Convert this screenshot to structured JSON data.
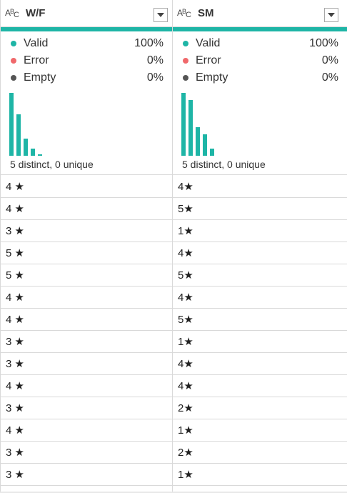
{
  "columns": [
    {
      "type_icon": {
        "a": "A",
        "b": "B",
        "c": "C",
        "name": "text-type-icon"
      },
      "name": "W/F",
      "valid_label": "Valid",
      "valid_pct": "100%",
      "error_label": "Error",
      "error_pct": "0%",
      "empty_label": "Empty",
      "empty_pct": "0%",
      "distribution": [
        88,
        58,
        24,
        10,
        2
      ],
      "summary": "5 distinct, 0 unique",
      "rows": [
        "4 ★",
        "4 ★",
        "3 ★",
        "5 ★",
        "5 ★",
        "4 ★",
        "4 ★",
        "3 ★",
        "3 ★",
        "4 ★",
        "3 ★",
        "4 ★",
        "3 ★",
        "3 ★"
      ]
    },
    {
      "type_icon": {
        "a": "A",
        "b": "B",
        "c": "C",
        "name": "text-type-icon"
      },
      "name": "SM",
      "valid_label": "Valid",
      "valid_pct": "100%",
      "error_label": "Error",
      "error_pct": "0%",
      "empty_label": "Empty",
      "empty_pct": "0%",
      "distribution": [
        88,
        78,
        40,
        30,
        10
      ],
      "summary": "5 distinct, 0 unique",
      "rows": [
        "4★",
        "5★",
        "1★",
        "4★",
        "5★",
        "4★",
        "5★",
        "1★",
        "4★",
        "4★",
        "2★",
        "1★",
        "2★",
        "1★"
      ]
    }
  ],
  "colors": {
    "accent": "#1eb5a6",
    "error": "#f0686b",
    "empty": "#555555"
  }
}
